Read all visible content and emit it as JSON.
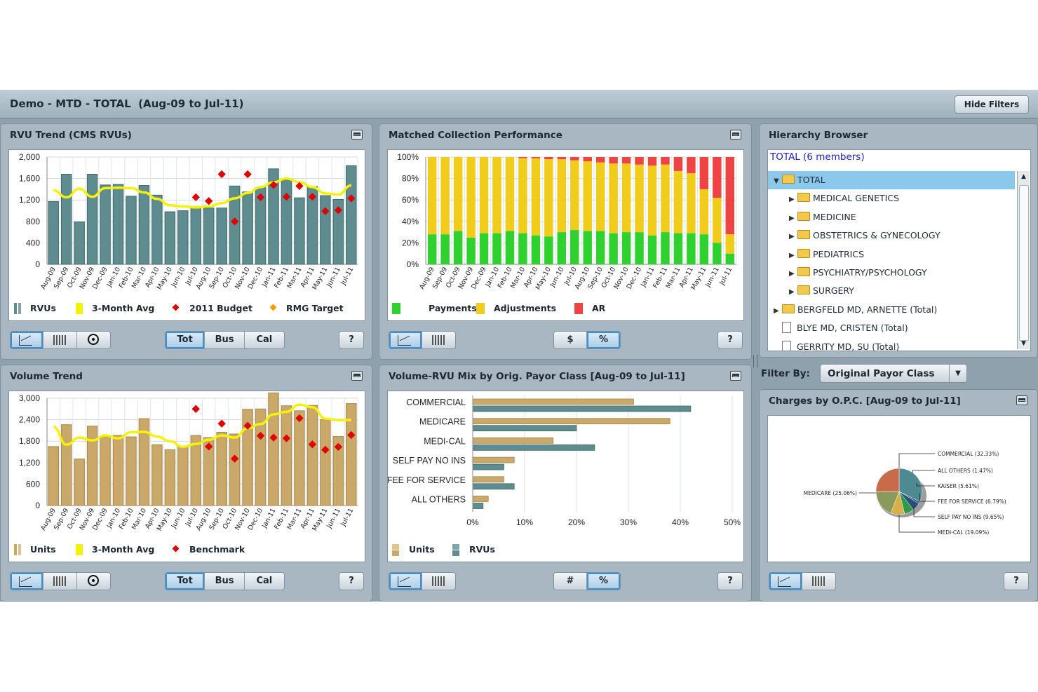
{
  "header": {
    "title": "Demo - MTD - TOTAL  (Aug-09 to Jul-11)",
    "hide_filters": "Hide Filters"
  },
  "controls": {
    "tot": "Tot",
    "bus": "Bus",
    "cal": "Cal",
    "dollar": "$",
    "percent": "%",
    "hash": "#",
    "help": "?"
  },
  "panels": {
    "rvu_trend": {
      "title": "RVU Trend (CMS RVUs)",
      "legend": [
        "RVUs",
        "3-Month Avg",
        "2011 Budget",
        "RMG Target"
      ]
    },
    "collection": {
      "title": "Matched Collection Performance",
      "legend": [
        "Payments",
        "Adjustments",
        "AR"
      ]
    },
    "volume_trend": {
      "title": "Volume Trend",
      "legend": [
        "Units",
        "3-Month Avg",
        "Benchmark"
      ]
    },
    "payor_mix": {
      "title": "Volume-RVU Mix by Orig. Payor Class [Aug-09 to Jul-11]",
      "legend": [
        "Units",
        "RVUs"
      ]
    },
    "hierarchy": {
      "title": "Hierarchy Browser",
      "summary": "TOTAL (6 members)",
      "items": [
        {
          "label": "TOTAL",
          "kind": "folder",
          "expanded": true,
          "selected": true
        },
        {
          "label": "MEDICAL GENETICS",
          "kind": "folder"
        },
        {
          "label": "MEDICINE",
          "kind": "folder"
        },
        {
          "label": "OBSTETRICS & GYNECOLOGY",
          "kind": "folder"
        },
        {
          "label": "PEDIATRICS",
          "kind": "folder"
        },
        {
          "label": "PSYCHIATRY/PSYCHOLOGY",
          "kind": "folder"
        },
        {
          "label": "SURGERY",
          "kind": "folder"
        },
        {
          "label": "BERGFELD MD, ARNETTE (Total)",
          "kind": "folder"
        },
        {
          "label": "BLYE MD, CRISTEN (Total)",
          "kind": "doc"
        },
        {
          "label": "GERRITY MD, SU (Total)",
          "kind": "doc"
        }
      ]
    },
    "filter": {
      "label": "Filter By:",
      "value": "Original Payor Class"
    },
    "charges": {
      "title": "Charges by O.P.C. [Aug-09 to Jul-11]"
    }
  },
  "colors": {
    "rvu_bar": "#5e8c8f",
    "avg_line": "#f5f20a",
    "budget": "#e00000",
    "target": "#f0a000",
    "payments": "#2fd12f",
    "adjustments": "#f2cc1a",
    "ar": "#ee4444",
    "units_bar": "#c9a86a"
  },
  "chart_data": [
    {
      "id": "rvu",
      "type": "bar",
      "categories": [
        "Aug-09",
        "Sep-09",
        "Oct-09",
        "Nov-09",
        "Dec-09",
        "Jan-10",
        "Feb-10",
        "Mar-10",
        "Apr-10",
        "May-10",
        "Jun-10",
        "Jul-10",
        "Aug-10",
        "Sep-10",
        "Oct-10",
        "Nov-10",
        "Dec-10",
        "Jan-11",
        "Feb-11",
        "Mar-11",
        "Apr-11",
        "May-11",
        "Jun-11",
        "Jul-11"
      ],
      "series": [
        {
          "name": "RVUs",
          "values": [
            1170,
            1680,
            790,
            1680,
            1480,
            1490,
            1270,
            1470,
            1290,
            980,
            1000,
            1080,
            1050,
            1050,
            1460,
            1350,
            1430,
            1780,
            1580,
            1240,
            1450,
            1280,
            1210,
            1840
          ]
        },
        {
          "name": "3-Month Avg",
          "values": [
            1380,
            1250,
            1410,
            1260,
            1420,
            1430,
            1420,
            1340,
            1220,
            1100,
            1080,
            1060,
            1080,
            1140,
            1230,
            1330,
            1440,
            1530,
            1600,
            1530,
            1440,
            1320,
            1300,
            1470
          ]
        },
        {
          "name": "2011 Budget",
          "values": [
            null,
            null,
            null,
            null,
            null,
            null,
            null,
            null,
            null,
            null,
            null,
            1250,
            1180,
            1680,
            800,
            1680,
            1250,
            1480,
            1260,
            1460,
            1260,
            990,
            1010,
            1230
          ]
        }
      ],
      "ylim": [
        0,
        2000
      ],
      "yticks": [
        "0",
        "400",
        "800",
        "1,200",
        "1,600",
        "2,000"
      ]
    },
    {
      "id": "collection",
      "type": "bar",
      "categories": [
        "Aug-09",
        "Sep-09",
        "Oct-09",
        "Nov-09",
        "Dec-09",
        "Jan-10",
        "Feb-10",
        "Mar-10",
        "Apr-10",
        "May-10",
        "Jun-10",
        "Jul-10",
        "Aug-10",
        "Sep-10",
        "Oct-10",
        "Nov-10",
        "Dec-10",
        "Jan-11",
        "Feb-11",
        "Mar-11",
        "Apr-11",
        "May-11",
        "Jun-11",
        "Jul-11"
      ],
      "series": [
        {
          "name": "Payments",
          "values": [
            28,
            28,
            31,
            25,
            29,
            29,
            31,
            29,
            27,
            26,
            30,
            32,
            31,
            31,
            29,
            30,
            30,
            27,
            30,
            29,
            29,
            28,
            20,
            10
          ]
        },
        {
          "name": "Adjustments",
          "values": [
            72,
            72,
            69,
            75,
            71,
            71,
            69,
            70,
            72,
            72,
            68,
            65,
            65,
            64,
            65,
            64,
            63,
            65,
            63,
            58,
            56,
            42,
            42,
            18
          ]
        },
        {
          "name": "AR",
          "values": [
            0,
            0,
            0,
            0,
            0,
            0,
            0,
            1,
            1,
            2,
            2,
            3,
            4,
            5,
            6,
            6,
            7,
            8,
            7,
            13,
            15,
            30,
            38,
            72
          ]
        }
      ],
      "ylim": [
        0,
        100
      ],
      "yticks": [
        "0%",
        "20%",
        "40%",
        "60%",
        "80%",
        "100%"
      ]
    },
    {
      "id": "volume",
      "type": "bar",
      "categories": [
        "Aug-09",
        "Sep-09",
        "Oct-09",
        "Nov-09",
        "Dec-09",
        "Jan-10",
        "Feb-10",
        "Mar-10",
        "Apr-10",
        "May-10",
        "Jun-10",
        "Jul-10",
        "Aug-10",
        "Sep-10",
        "Oct-10",
        "Nov-10",
        "Dec-10",
        "Jan-11",
        "Feb-11",
        "Mar-11",
        "Apr-11",
        "May-11",
        "Jun-11",
        "Jul-11"
      ],
      "series": [
        {
          "name": "Units",
          "values": [
            1650,
            2260,
            1300,
            2220,
            1940,
            1960,
            1920,
            2430,
            1700,
            1560,
            1660,
            1960,
            1900,
            2050,
            2000,
            2690,
            2700,
            3150,
            2790,
            2650,
            2800,
            2400,
            1930,
            2850
          ]
        },
        {
          "name": "3-Month Avg",
          "values": [
            2200,
            1700,
            1900,
            1820,
            1960,
            1880,
            2050,
            2060,
            1930,
            1800,
            1640,
            1720,
            1840,
            1960,
            1900,
            2160,
            2280,
            2550,
            2620,
            2820,
            2750,
            2430,
            2390,
            2390
          ]
        },
        {
          "name": "Benchmark",
          "values": [
            null,
            null,
            null,
            null,
            null,
            null,
            null,
            null,
            null,
            null,
            null,
            2700,
            1650,
            2290,
            1310,
            2230,
            1950,
            1900,
            1880,
            2440,
            1710,
            1560,
            1640,
            1970
          ]
        }
      ],
      "ylim": [
        0,
        3000
      ],
      "yticks": [
        "0",
        "600",
        "1,200",
        "1,800",
        "2,400",
        "3,000"
      ]
    },
    {
      "id": "payor_mix",
      "type": "bar",
      "orientation": "horizontal",
      "categories": [
        "COMMERCIAL",
        "MEDICARE",
        "MEDI-CAL",
        "SELF PAY NO INS",
        "FEE FOR SERVICE",
        "ALL OTHERS"
      ],
      "series": [
        {
          "name": "Units",
          "values": [
            31,
            38,
            15.5,
            8,
            6,
            3
          ]
        },
        {
          "name": "RVUs",
          "values": [
            42,
            20,
            23.5,
            6,
            8,
            2
          ]
        }
      ],
      "xlim": [
        0,
        50
      ],
      "xticks": [
        "0%",
        "10%",
        "20%",
        "30%",
        "40%",
        "50%"
      ]
    },
    {
      "id": "charges",
      "type": "pie",
      "slices": [
        {
          "label": "COMMERCIAL (32.33%)",
          "value": 32.33,
          "color": "#4e8a92"
        },
        {
          "label": "ALL OTHERS (1.47%)",
          "value": 1.47,
          "color": "#2e5d8a"
        },
        {
          "label": "KAISER (5.61%)",
          "value": 5.61,
          "color": "#2a4d7a"
        },
        {
          "label": "FEE FOR SERVICE (6.79%)",
          "value": 6.79,
          "color": "#2f9a4a"
        },
        {
          "label": "SELF PAY NO INS (9.65%)",
          "value": 9.65,
          "color": "#d8b04a"
        },
        {
          "label": "MEDI-CAL (19.09%)",
          "value": 19.09,
          "color": "#8a9a5a"
        },
        {
          "label": "MEDICARE (25.06%)",
          "value": 25.06,
          "color": "#c96a4a"
        }
      ]
    }
  ]
}
